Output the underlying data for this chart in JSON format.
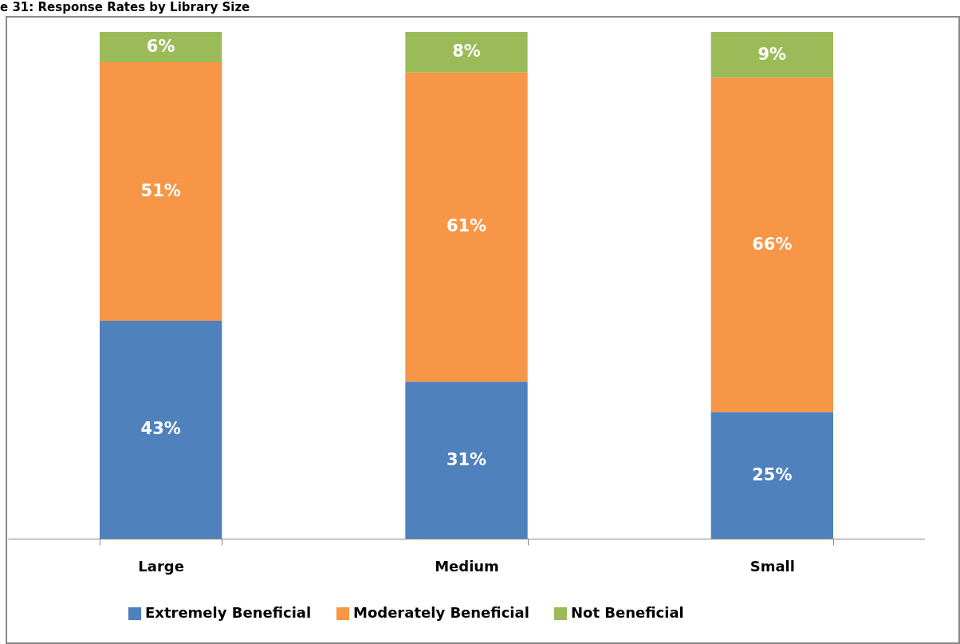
{
  "chart_data": {
    "type": "bar",
    "title": "e 31: Response Rates by Library Size",
    "categories": [
      "Large",
      "Medium",
      "Small"
    ],
    "stacked": true,
    "legend": "bottom",
    "series": [
      {
        "name": "Extremely Beneficial",
        "color": "#4f81bd",
        "values": [
          43,
          31,
          25
        ],
        "value_labels": [
          "43%",
          "31%",
          "25%"
        ]
      },
      {
        "name": "Moderately Beneficial",
        "color": "#f79646",
        "values": [
          51,
          61,
          66
        ],
        "value_labels": [
          "51%",
          "61%",
          "66%"
        ]
      },
      {
        "name": "Not Beneficial",
        "color": "#9bbb59",
        "values": [
          6,
          8,
          9
        ],
        "value_labels": [
          "6%",
          "8%",
          "9%"
        ]
      }
    ]
  }
}
